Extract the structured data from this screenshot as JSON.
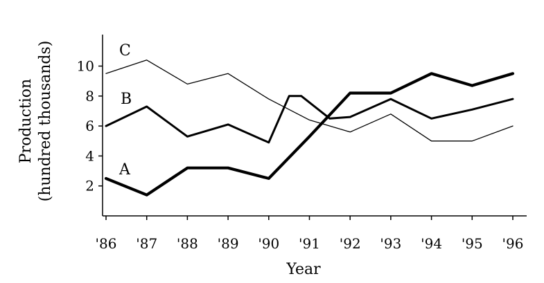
{
  "chart_data": {
    "type": "line",
    "title": "",
    "xlabel": "Year",
    "ylabel": [
      "Production",
      "(hundred thousands)"
    ],
    "categories": [
      "'86",
      "'87",
      "'88",
      "'89",
      "'90",
      "'91",
      "'92",
      "'93",
      "'94",
      "'95",
      "'96"
    ],
    "yticks": [
      "2",
      "4",
      "6",
      "8",
      "10"
    ],
    "ylim": [
      0,
      12
    ],
    "grid": false,
    "series": [
      {
        "name": "A",
        "style": "thick",
        "x": [
          1986,
          1987,
          1988,
          1989,
          1990,
          1991,
          1992,
          1993,
          1994,
          1995,
          1996
        ],
        "values": [
          2.5,
          1.4,
          3.2,
          3.2,
          2.5,
          5.3,
          8.2,
          8.2,
          9.5,
          8.7,
          9.5
        ]
      },
      {
        "name": "B",
        "style": "medium",
        "x": [
          1986,
          1987,
          1988,
          1989,
          1990,
          1990.5,
          1990.8,
          1991.5,
          1992,
          1993,
          1994,
          1995,
          1996
        ],
        "values": [
          6.0,
          7.3,
          5.3,
          6.1,
          4.9,
          8.0,
          8.0,
          6.5,
          6.6,
          7.8,
          6.5,
          7.1,
          7.8
        ]
      },
      {
        "name": "C",
        "style": "thin",
        "x": [
          1986,
          1987,
          1988,
          1989,
          1990,
          1991,
          1992,
          1993,
          1994,
          1995,
          1996
        ],
        "values": [
          9.5,
          10.4,
          8.8,
          9.5,
          7.8,
          6.4,
          5.6,
          6.8,
          5.0,
          5.0,
          6.0
        ]
      }
    ]
  }
}
